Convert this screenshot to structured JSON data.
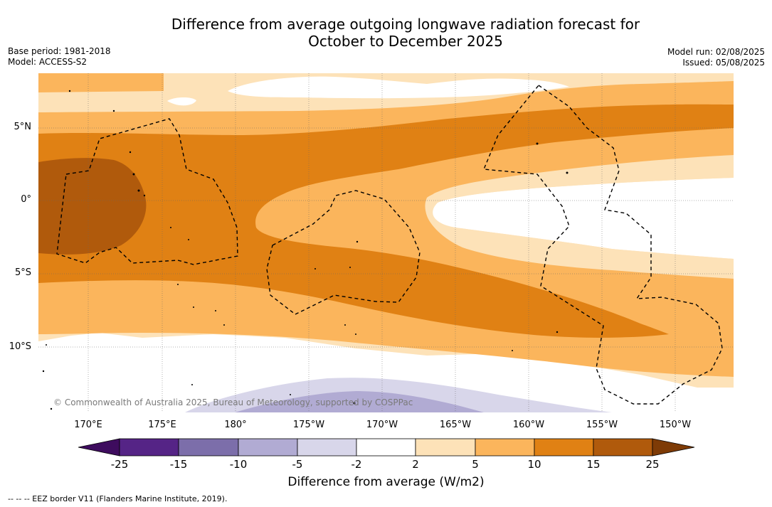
{
  "header": {
    "title_line1": "Difference from average outgoing longwave radiation forecast for",
    "title_line2": "October to December 2025",
    "base_period": "Base period: 1981-2018",
    "model": "Model: ACCESS-S2",
    "model_run": "Model run: 02/08/2025",
    "issued": "Issued: 05/08/2025"
  },
  "map": {
    "lat_labels": [
      "5°N",
      "0°",
      "5°S",
      "10°S"
    ],
    "lon_labels": [
      "170°E",
      "175°E",
      "180°",
      "175°W",
      "170°W",
      "165°W",
      "160°W",
      "155°W",
      "150°W"
    ],
    "credit": "© Commonwealth of Australia 2025, Bureau of Meteorology, supported by COSPPac",
    "colors": {
      "pos_2_5": "#fde2b8",
      "pos_5_10": "#fbb55c",
      "pos_10_15": "#e08114",
      "pos_15_25": "#b05a0c",
      "neg_2_5": "#d8d6ea",
      "neg_5_10": "#b1abd3"
    }
  },
  "colorbar": {
    "ticks": [
      "-25",
      "-15",
      "-10",
      "-5",
      "-2",
      "2",
      "5",
      "10",
      "15",
      "25"
    ],
    "colors": [
      "#3e0c5e",
      "#552486",
      "#7c6eaa",
      "#b1abd3",
      "#d8d6ea",
      "#ffffff",
      "#fde2b8",
      "#fbb55c",
      "#e08114",
      "#b05a0c",
      "#7e3b06"
    ],
    "title": "Difference from average (W/m2)"
  },
  "footnote": "--  --  -- EEZ border V11 (Flanders Marine Institute, 2019)."
}
